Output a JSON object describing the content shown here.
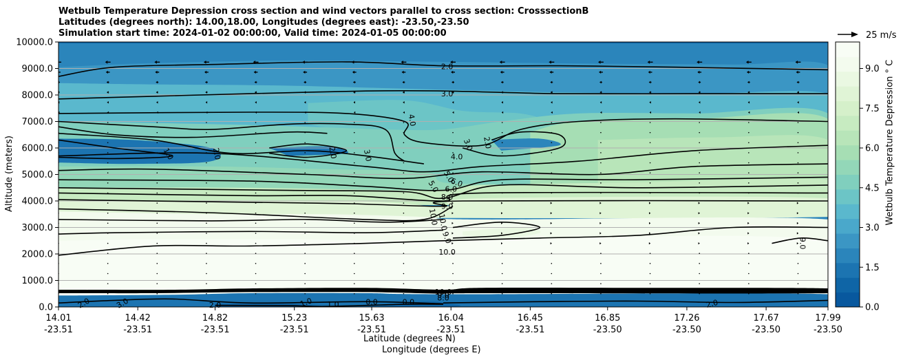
{
  "title_lines": [
    "Wetbulb Temperature Depression cross section and wind vectors parallel to cross section: CrosssectionB",
    "Latitudes (degrees north): 14.00,18.00, Longitudes (degrees east): -23.50,-23.50",
    "Simulation start time: 2024-01-02 00:00:00, Valid time: 2024-01-05 00:00:00"
  ],
  "chart_data": {
    "type": "contour_cross_section",
    "title": "Wetbulb Temperature Depression cross section and wind vectors parallel to cross section: CrosssectionB",
    "ylabel": "Altitude (meters)",
    "xlabel": "Latitude (degrees N)",
    "xlabel2": "Longitude (degrees E)",
    "ylim": [
      0,
      10000
    ],
    "yticks": [
      "0.0",
      "1000.0",
      "2000.0",
      "3000.0",
      "4000.0",
      "5000.0",
      "6000.0",
      "7000.0",
      "8000.0",
      "9000.0",
      "10000.0"
    ],
    "ytick_values": [
      0,
      1000,
      2000,
      3000,
      4000,
      5000,
      6000,
      7000,
      8000,
      9000,
      10000
    ],
    "xlim": [
      14.01,
      17.99
    ],
    "xtick_lat": [
      "14.01",
      "14.42",
      "14.82",
      "15.23",
      "15.63",
      "16.04",
      "16.45",
      "16.85",
      "17.26",
      "17.67",
      "17.99"
    ],
    "xtick_lon": [
      "-23.51",
      "-23.51",
      "-23.51",
      "-23.51",
      "-23.51",
      "-23.51",
      "-23.51",
      "-23.50",
      "-23.50",
      "-23.50",
      "-23.50"
    ],
    "xtick_values": [
      14.01,
      14.42,
      14.82,
      15.23,
      15.63,
      16.04,
      16.45,
      16.85,
      17.26,
      17.67,
      17.99
    ],
    "grid": "horizontal",
    "colorbar": {
      "label": "Wetbulb Temperature Depression $^\\circ$C",
      "label_display": "Wetbulb Temperature Depression ° C",
      "min": 0.0,
      "max": 10.0,
      "ticks": [
        "0.0",
        "1.5",
        "3.0",
        "4.5",
        "6.0",
        "7.5",
        "9.0"
      ],
      "tick_values": [
        0.0,
        1.5,
        3.0,
        4.5,
        6.0,
        7.5,
        9.0
      ],
      "colors": [
        "#08589e",
        "#0f65a6",
        "#1c74b1",
        "#2b85bb",
        "#3b96c4",
        "#4aa8cb",
        "#5ab8cd",
        "#6cc5c6",
        "#80cfbe",
        "#93d7b8",
        "#a6deb4",
        "#b8e5b9",
        "#c7ebc1",
        "#d5f0ca",
        "#e0f4d6",
        "#eaf8e2",
        "#f3fbee",
        "#f8fdf5"
      ]
    },
    "contour_labels": [
      {
        "text": "2.0",
        "lat": 16.02,
        "alt": 9080,
        "rot": 0
      },
      {
        "text": "3.0",
        "lat": 16.02,
        "alt": 8050,
        "rot": 0
      },
      {
        "text": "4.0",
        "lat": 15.84,
        "alt": 7050,
        "rot": 80
      },
      {
        "text": "1.0",
        "lat": 14.58,
        "alt": 5780,
        "rot": 60
      },
      {
        "text": "2.0",
        "lat": 14.83,
        "alt": 5780,
        "rot": 80
      },
      {
        "text": "2.0",
        "lat": 15.43,
        "alt": 5820,
        "rot": 80
      },
      {
        "text": "3.0",
        "lat": 15.61,
        "alt": 5720,
        "rot": 80
      },
      {
        "text": "2.0",
        "lat": 16.23,
        "alt": 6200,
        "rot": 80
      },
      {
        "text": "3.0",
        "lat": 16.13,
        "alt": 6120,
        "rot": 70
      },
      {
        "text": "4.0",
        "lat": 16.07,
        "alt": 5680,
        "rot": 0
      },
      {
        "text": "5.0",
        "lat": 16.03,
        "alt": 4920,
        "rot": 60
      },
      {
        "text": "6.0",
        "lat": 16.07,
        "alt": 4700,
        "rot": 20
      },
      {
        "text": "5.0",
        "lat": 15.95,
        "alt": 4550,
        "rot": 60
      },
      {
        "text": "6.0",
        "lat": 16.04,
        "alt": 4450,
        "rot": 0
      },
      {
        "text": "8.0",
        "lat": 16.02,
        "alt": 4150,
        "rot": 0
      },
      {
        "text": "9.0",
        "lat": 16.02,
        "alt": 3800,
        "rot": 0
      },
      {
        "text": "10.0",
        "lat": 15.95,
        "alt": 3400,
        "rot": 80
      },
      {
        "text": "10.0",
        "lat": 16.0,
        "alt": 3200,
        "rot": 80
      },
      {
        "text": "9.0",
        "lat": 16.02,
        "alt": 2620,
        "rot": 70
      },
      {
        "text": "10.0",
        "lat": 16.02,
        "alt": 2080,
        "rot": 0
      },
      {
        "text": "9.0",
        "lat": 17.86,
        "alt": 2400,
        "rot": 90
      },
      {
        "text": "10.0",
        "lat": 16.0,
        "alt": 570,
        "rot": 0
      },
      {
        "text": "9.0",
        "lat": 16.0,
        "alt": 450,
        "rot": 0
      },
      {
        "text": "8.0",
        "lat": 16.0,
        "alt": 350,
        "rot": 0
      },
      {
        "text": "2.0",
        "lat": 14.14,
        "alt": 150,
        "rot": -30
      },
      {
        "text": "3.0",
        "lat": 14.34,
        "alt": 150,
        "rot": -30
      },
      {
        "text": "2.0",
        "lat": 14.82,
        "alt": 80,
        "rot": 0
      },
      {
        "text": "1.0",
        "lat": 15.29,
        "alt": 180,
        "rot": -20
      },
      {
        "text": "1.0",
        "lat": 15.43,
        "alt": 100,
        "rot": 0
      },
      {
        "text": "0.0",
        "lat": 15.63,
        "alt": 200,
        "rot": 0
      },
      {
        "text": "0.0",
        "lat": 15.82,
        "alt": 200,
        "rot": 0
      },
      {
        "text": "2.0",
        "lat": 17.39,
        "alt": 130,
        "rot": -15
      }
    ],
    "wind_reference": {
      "speed": 25,
      "label": "25 m/s"
    }
  },
  "colors": {
    "grid": "#b0b0b0",
    "contour": "#000000",
    "arrow": "#000000"
  }
}
